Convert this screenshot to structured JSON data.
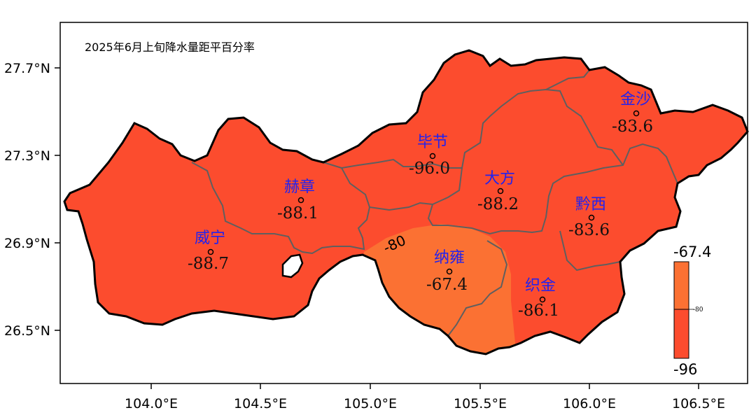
{
  "title": "2025年6月上旬降水量距平百分率",
  "colors": {
    "low": "#fc4c2e",
    "high": "#fb7133",
    "boundary_outer": "#000000",
    "boundary_inner": "#5f5f5f",
    "station_name": "#2222ee"
  },
  "axes": {
    "x_ticks": [
      "104.0°E",
      "104.5°E",
      "105.0°E",
      "105.5°E",
      "106.0°E",
      "106.5°E"
    ],
    "y_ticks": [
      "27.7°N",
      "27.3°N",
      "26.9°N",
      "26.5°N"
    ]
  },
  "stations": [
    {
      "id": "jinsha",
      "name": "金沙",
      "value": "-83.6"
    },
    {
      "id": "bijie",
      "name": "毕节",
      "value": "-96.0"
    },
    {
      "id": "dafang",
      "name": "大方",
      "value": "-88.2"
    },
    {
      "id": "hezhang",
      "name": "赫章",
      "value": "-88.1"
    },
    {
      "id": "qianxi",
      "name": "黔西",
      "value": "-83.6"
    },
    {
      "id": "weining",
      "name": "威宁",
      "value": "-88.7"
    },
    {
      "id": "nayong",
      "name": "纳雍",
      "value": "-67.4"
    },
    {
      "id": "zhijin",
      "name": "织金",
      "value": "-86.1"
    }
  ],
  "contour_label": "-80",
  "colorbar": {
    "max_label": "-67.4",
    "min_label": "-96",
    "tick_label": "-80"
  }
}
